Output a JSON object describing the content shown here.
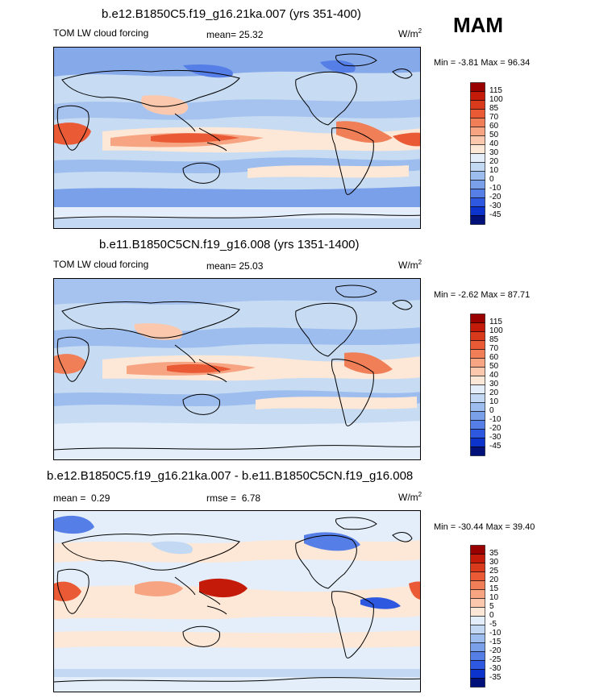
{
  "season": "MAM",
  "chart_data": [
    {
      "type": "heatmap",
      "title": "b.e12.B1850C5.f19_g16.21ka.007 (yrs 351-400)",
      "variable": "TOM LW cloud forcing",
      "mean_label": "mean=",
      "mean_value": "25.32",
      "units": "W/m",
      "units_exp": "2",
      "min_label": "Min =",
      "min_value": "-3.81",
      "max_label": "Max =",
      "max_value": "96.34",
      "colorbar_levels": [
        "115",
        "100",
        "85",
        "70",
        "60",
        "50",
        "40",
        "30",
        "20",
        "10",
        "0",
        "-10",
        "-20",
        "-30",
        "-45"
      ],
      "colorbar_colors": [
        "#990000",
        "#c41a0a",
        "#d93a1c",
        "#e95a35",
        "#f07f57",
        "#f6a482",
        "#fbc8ad",
        "#fde7d6",
        "#e3eefa",
        "#c2d8f3",
        "#9dbdee",
        "#7aa0ea",
        "#557fe6",
        "#2d58df",
        "#0c33cc",
        "#00127a"
      ],
      "ylim": [
        -45,
        115
      ]
    },
    {
      "type": "heatmap",
      "title": "b.e11.B1850C5CN.f19_g16.008 (yrs 1351-1400)",
      "variable": "TOM LW cloud forcing",
      "mean_label": "mean=",
      "mean_value": "25.03",
      "units": "W/m",
      "units_exp": "2",
      "min_label": "Min =",
      "min_value": "-2.62",
      "max_label": "Max =",
      "max_value": "87.71",
      "colorbar_levels": [
        "115",
        "100",
        "85",
        "70",
        "60",
        "50",
        "40",
        "30",
        "20",
        "10",
        "0",
        "-10",
        "-20",
        "-30",
        "-45"
      ],
      "colorbar_colors": [
        "#990000",
        "#c41a0a",
        "#d93a1c",
        "#e95a35",
        "#f07f57",
        "#f6a482",
        "#fbc8ad",
        "#fde7d6",
        "#e3eefa",
        "#c2d8f3",
        "#9dbdee",
        "#7aa0ea",
        "#557fe6",
        "#2d58df",
        "#0c33cc",
        "#00127a"
      ],
      "ylim": [
        -45,
        115
      ]
    },
    {
      "type": "heatmap",
      "title": "b.e12.B1850C5.f19_g16.21ka.007 - b.e11.B1850C5CN.f19_g16.008",
      "mean_label": "mean =",
      "mean_value": "0.29",
      "rmse_label": "rmse =",
      "rmse_value": "6.78",
      "units": "W/m",
      "units_exp": "2",
      "min_label": "Min =",
      "min_value": "-30.44",
      "max_label": "Max =",
      "max_value": "39.40",
      "colorbar_levels": [
        "35",
        "30",
        "25",
        "20",
        "15",
        "10",
        "5",
        "0",
        "-5",
        "-10",
        "-15",
        "-20",
        "-25",
        "-30",
        "-35"
      ],
      "colorbar_colors": [
        "#990000",
        "#c41a0a",
        "#d93a1c",
        "#e95a35",
        "#f07f57",
        "#f6a482",
        "#fbc8ad",
        "#fde7d6",
        "#e3eefa",
        "#c2d8f3",
        "#9dbdee",
        "#7aa0ea",
        "#557fe6",
        "#2d58df",
        "#0c33cc",
        "#00127a"
      ],
      "ylim": [
        -35,
        35
      ]
    }
  ]
}
